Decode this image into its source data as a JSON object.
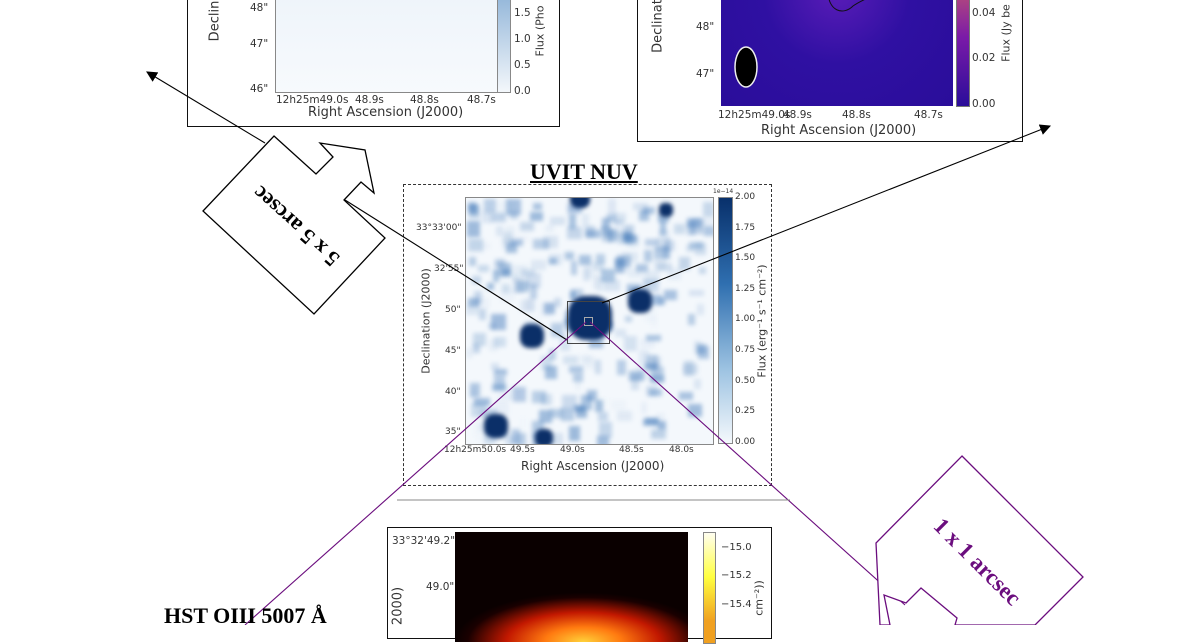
{
  "figure": {
    "panels": {
      "top_left": {
        "colorbar_ticks": [
          "1.5",
          "1.0",
          "0.5",
          "0.0"
        ],
        "colorbar_label": "Flux (Pho",
        "y_ticks": [
          "48\"",
          "47\"",
          "46\""
        ],
        "y_label": "Declin",
        "x_ticks": [
          "12h25m49.0s",
          "48.9s",
          "48.8s",
          "48.7s"
        ],
        "x_label": "Right Ascension (J2000)",
        "colormap_color": "#dbe7f3"
      },
      "top_right": {
        "colorbar_ticks": [
          "0.04",
          "0.02",
          "0.00"
        ],
        "colorbar_label": "Flux (Jy be",
        "y_ticks": [
          "48\"",
          "47\""
        ],
        "y_label": "Declinat",
        "x_ticks": [
          "12h25m49.0s",
          "48.9s",
          "48.8s",
          "48.7s"
        ],
        "x_label": "Right Ascension (J2000)",
        "colormap_color": "#2d0f9e"
      },
      "center": {
        "title": "UVIT NUV",
        "colorbar_scale": "1e−14",
        "colorbar_ticks": [
          "2.00",
          "1.75",
          "1.50",
          "1.25",
          "1.00",
          "0.75",
          "0.50",
          "0.25",
          "0.00"
        ],
        "colorbar_label": "Flux (erg⁻¹ s⁻¹ cm⁻²)",
        "y_ticks": [
          "33°33'00\"",
          "32'55\"",
          "50\"",
          "45\"",
          "40\"",
          "35\""
        ],
        "y_label": "Declination (J2000)",
        "x_ticks": [
          "12h25m50.0s",
          "49.5s",
          "49.0s",
          "48.5s",
          "48.0s"
        ],
        "x_label": "Right Ascension (J2000)",
        "colormap_color": "#08306b"
      },
      "bottom": {
        "title": "HST OIII 5007 Å",
        "colorbar_ticks": [
          "−15.0",
          "−15.2",
          "−15.4"
        ],
        "colorbar_label": "cm⁻²))",
        "y_ticks": [
          "33°32'49.2\"",
          "49.0\""
        ],
        "y_label": "2000)"
      }
    },
    "callouts": {
      "five_arcsec": {
        "label": "5 x 5 arcsec",
        "color": "#000000"
      },
      "one_arcsec": {
        "label": "1 x 1 arcsec",
        "color": "#6b0d7e"
      }
    }
  }
}
